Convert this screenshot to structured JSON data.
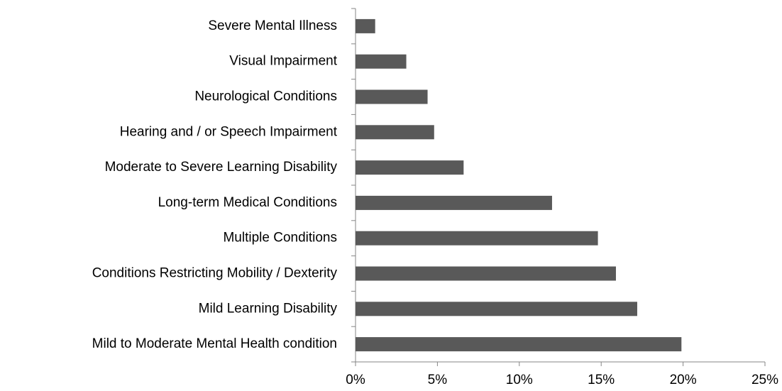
{
  "chart_data": {
    "type": "hbar",
    "categories": [
      "Severe Mental Illness",
      "Visual Impairment",
      "Neurological Conditions",
      "Hearing and / or Speech Impairment",
      "Moderate to Severe Learning Disability",
      "Long-term Medical Conditions",
      "Multiple Conditions",
      "Conditions Restricting Mobility / Dexterity",
      "Mild Learning Disability",
      "Mild to Moderate Mental Health condition"
    ],
    "values": [
      1.2,
      3.1,
      4.4,
      4.8,
      6.6,
      12.0,
      14.8,
      15.9,
      17.2,
      19.9
    ],
    "color": "#595959",
    "xlim": [
      0,
      25
    ],
    "xticks": [
      {
        "value": 0,
        "label": "0%"
      },
      {
        "value": 5,
        "label": "5%"
      },
      {
        "value": 10,
        "label": "10%"
      },
      {
        "value": 15,
        "label": "15%"
      },
      {
        "value": 20,
        "label": "20%"
      },
      {
        "value": 25,
        "label": "25%"
      }
    ],
    "grid": false
  }
}
